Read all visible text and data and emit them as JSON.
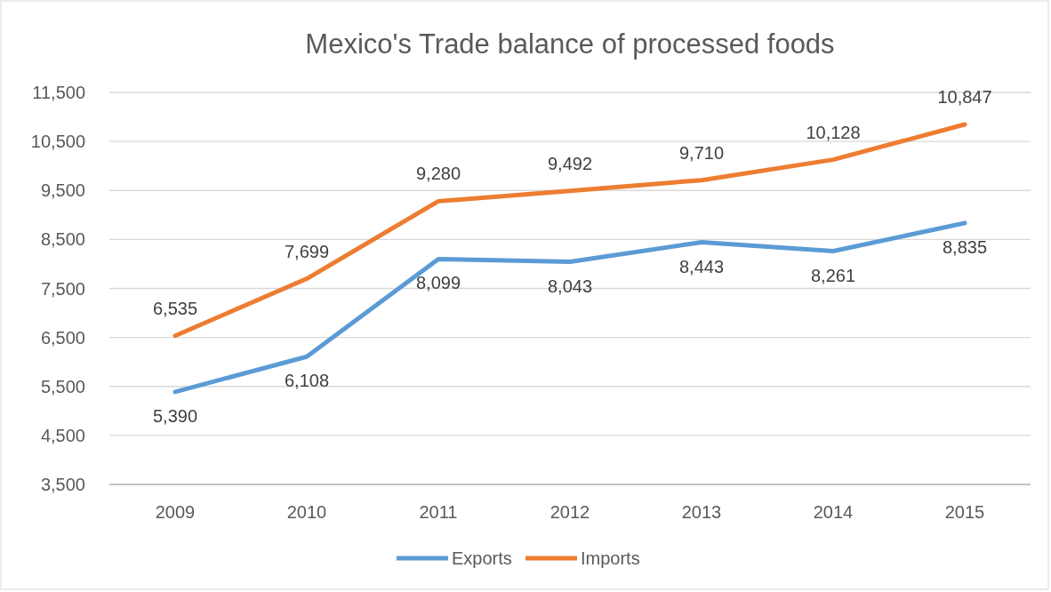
{
  "chart_data": {
    "type": "line",
    "title": "Mexico's Trade balance of processed foods",
    "categories": [
      "2009",
      "2010",
      "2011",
      "2012",
      "2013",
      "2014",
      "2015"
    ],
    "series": [
      {
        "name": "Exports",
        "color": "#5b9bd5",
        "values": [
          5390,
          6108,
          8099,
          8043,
          8443,
          8261,
          8835
        ],
        "value_labels": [
          "5,390",
          "6,108",
          "8,099",
          "8,043",
          "8,443",
          "8,261",
          "8,835"
        ]
      },
      {
        "name": "Imports",
        "color": "#ed7d31",
        "values": [
          6535,
          7699,
          9280,
          9492,
          9710,
          10128,
          10847
        ],
        "value_labels": [
          "6,535",
          "7,699",
          "9,280",
          "9,492",
          "9,710",
          "10,128",
          "10,847"
        ]
      }
    ],
    "ylim": [
      3500,
      11500
    ],
    "yticks": [
      {
        "value": 3500,
        "label": "3,500"
      },
      {
        "value": 4500,
        "label": "4,500"
      },
      {
        "value": 5500,
        "label": "5,500"
      },
      {
        "value": 6500,
        "label": "6,500"
      },
      {
        "value": 7500,
        "label": "7,500"
      },
      {
        "value": 8500,
        "label": "8,500"
      },
      {
        "value": 9500,
        "label": "9,500"
      },
      {
        "value": 10500,
        "label": "10,500"
      },
      {
        "value": 11500,
        "label": "11,500"
      }
    ],
    "grid": "y",
    "legend": "bottom",
    "marker": "none",
    "line_style": "solid"
  }
}
